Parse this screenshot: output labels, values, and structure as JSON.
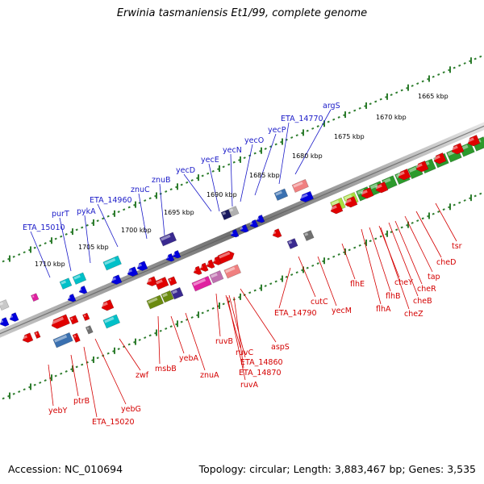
{
  "title": "Erwinia tasmaniensis Et1/99, complete genome",
  "footer": {
    "accession": "Accession: NC_010694",
    "topology": "Topology: circular; Length: 3,883,467 bp; Genes: 3,535"
  },
  "colors": {
    "forward_label": "#1a1ac8",
    "reverse_label": "#d40000",
    "backbone": "#808080",
    "ruler": "#2e7d2e",
    "feature_red": "#e00000",
    "feature_blue": "#0000dd",
    "feature_cyan": "#00c0c8",
    "feature_green": "#2c9a2c",
    "feature_olive": "#6a8a10",
    "feature_purple": "#3a2a90",
    "feature_magenta": "#e020a0",
    "feature_pink": "#f08080",
    "feature_steelblue": "#3a70b0",
    "feature_gray": "#808080"
  },
  "ruler_labels": [
    "1665 kbp",
    "1670 kbp",
    "1675 kbp",
    "1680 kbp",
    "1685 kbp",
    "1690 kbp",
    "1695 kbp",
    "1700 kbp",
    "1705 kbp",
    "1710 kbp"
  ],
  "forward_genes": [
    "argS",
    "ETA_14770",
    "yecP",
    "yecO",
    "yecN",
    "yecE",
    "yecD",
    "znuB",
    "znuC",
    "ETA_14960",
    "pykA",
    "purT",
    "ETA_15010"
  ],
  "reverse_genes": [
    "tsr",
    "cheD",
    "tap",
    "cheR",
    "cheB",
    "cheY",
    "cheZ",
    "flhB",
    "flhA",
    "flhE",
    "yecM",
    "cutC",
    "ETA_14790",
    "aspS",
    "ruvB",
    "ruvC",
    "ETA_14860",
    "ETA_14870",
    "ruvA",
    "znuA",
    "yebA",
    "msbB",
    "zwf",
    "yebG",
    "ETA_15020",
    "ptrB",
    "yebY"
  ]
}
